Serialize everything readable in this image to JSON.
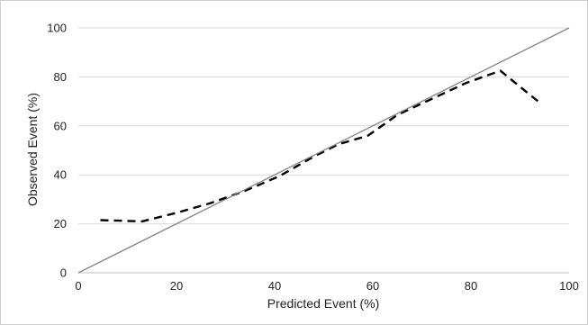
{
  "chart_data": {
    "type": "line",
    "title": "",
    "xlabel": "Predicted Event (%)",
    "ylabel": "Observed Event (%)",
    "xlim": [
      0,
      100
    ],
    "ylim": [
      0,
      100
    ],
    "x_ticks": [
      "0",
      "20",
      "40",
      "60",
      "80",
      "100"
    ],
    "y_ticks": [
      "0",
      "20",
      "40",
      "60",
      "80",
      "100"
    ],
    "grid": "horizontal",
    "legend": "none",
    "series": [
      {
        "style": "dashed",
        "color": "#000000",
        "x": [
          4.5,
          13,
          20,
          27,
          34,
          41,
          48,
          53,
          59,
          65,
          72,
          79,
          86,
          94
        ],
        "y": [
          21.5,
          21,
          24.5,
          28.5,
          33.5,
          39.5,
          47.5,
          52.5,
          56,
          64.5,
          71,
          77.5,
          82.5,
          69.5
        ]
      },
      {
        "style": "solid",
        "color": "#888888",
        "x": [
          0,
          100
        ],
        "y": [
          0,
          100
        ]
      }
    ],
    "colors": {
      "grid": "#d9d9d9",
      "axis": "#bfbfbf",
      "reference": "#888888",
      "calibration": "#000000"
    }
  }
}
